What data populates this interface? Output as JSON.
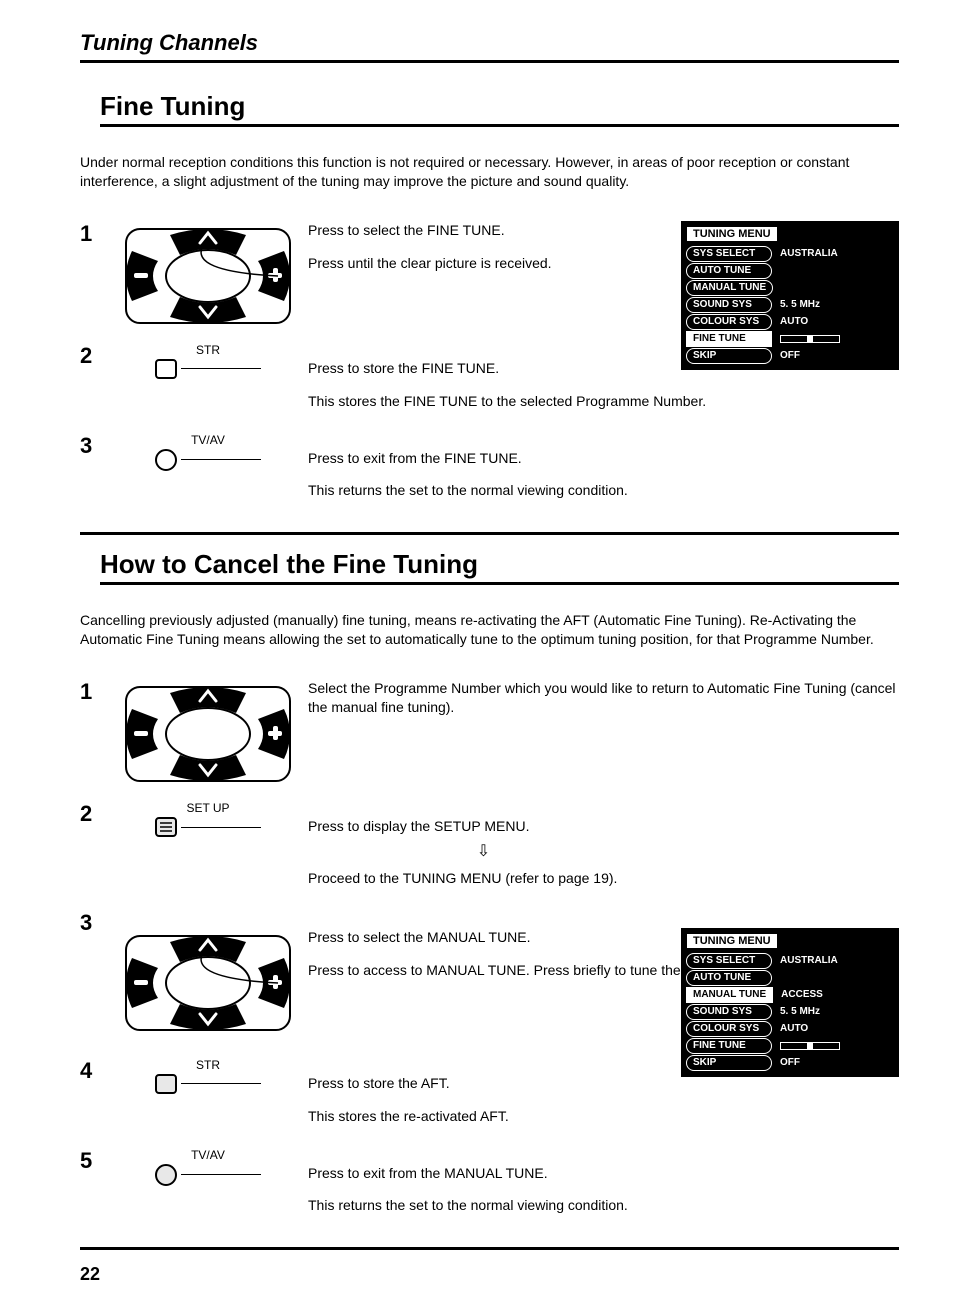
{
  "header": "Tuning Channels",
  "section1": {
    "title": "Fine Tuning",
    "intro": "Under normal reception conditions this function is not required or necessary.\nHowever, in areas of poor reception or constant interference, a slight adjustment of the tuning may improve the picture and sound quality.",
    "steps": [
      {
        "num": "1",
        "lines": [
          "Press to select the FINE TUNE.",
          "Press until the clear picture is received."
        ]
      },
      {
        "num": "2",
        "btn_label": "STR",
        "lines": [
          "Press to store the FINE TUNE.",
          "This stores the FINE TUNE to the selected Programme Number."
        ]
      },
      {
        "num": "3",
        "btn_label": "TV/AV",
        "lines": [
          "Press to exit from the FINE TUNE.",
          "This returns the set to the normal viewing condition."
        ]
      }
    ],
    "menu": {
      "title": "TUNING MENU",
      "rows": [
        {
          "key": "SYS SELECT",
          "val": "AUSTRALIA"
        },
        {
          "key": "AUTO TUNE",
          "val": ""
        },
        {
          "key": "MANUAL TUNE",
          "val": ""
        },
        {
          "key": "SOUND SYS",
          "val": "5. 5 MHz"
        },
        {
          "key": "COLOUR SYS",
          "val": "AUTO"
        },
        {
          "key": "FINE TUNE",
          "val": "",
          "bar": true,
          "highlight": true
        },
        {
          "key": "SKIP",
          "val": "OFF"
        }
      ]
    }
  },
  "section2": {
    "title": "How to Cancel the Fine Tuning",
    "intro": "Cancelling previously adjusted (manually) fine tuning, means re-activating the AFT (Automatic Fine Tuning).\nRe-Activating the Automatic Fine Tuning means allowing the set to automatically tune to the optimum tuning position, for that Programme Number.",
    "steps": [
      {
        "num": "1",
        "lines": [
          "Select the Programme Number which you would like to return to Automatic Fine Tuning (cancel the manual fine tuning)."
        ]
      },
      {
        "num": "2",
        "btn_label": "SET UP",
        "lines": [
          "Press to display the SETUP MENU.",
          "Proceed to the TUNING MENU (refer to page 19)."
        ]
      },
      {
        "num": "3",
        "lines": [
          "Press to select the MANUAL TUNE.",
          "Press to access to MANUAL TUNE.\nPress briefly to tune the best position."
        ]
      },
      {
        "num": "4",
        "btn_label": "STR",
        "lines": [
          "Press to store the AFT.",
          "This stores the re-activated AFT."
        ]
      },
      {
        "num": "5",
        "btn_label": "TV/AV",
        "lines": [
          "Press to exit from the MANUAL TUNE.",
          "This returns the set to the normal viewing condition."
        ]
      }
    ],
    "menu": {
      "title": "TUNING MENU",
      "rows": [
        {
          "key": "SYS SELECT",
          "val": "AUSTRALIA"
        },
        {
          "key": "AUTO TUNE",
          "val": ""
        },
        {
          "key": "MANUAL TUNE",
          "val": "ACCESS",
          "highlight": true
        },
        {
          "key": "SOUND SYS",
          "val": "5. 5 MHz"
        },
        {
          "key": "COLOUR SYS",
          "val": "AUTO"
        },
        {
          "key": "FINE TUNE",
          "val": "",
          "bar": true
        },
        {
          "key": "SKIP",
          "val": "OFF"
        }
      ]
    }
  },
  "page_number": "22"
}
